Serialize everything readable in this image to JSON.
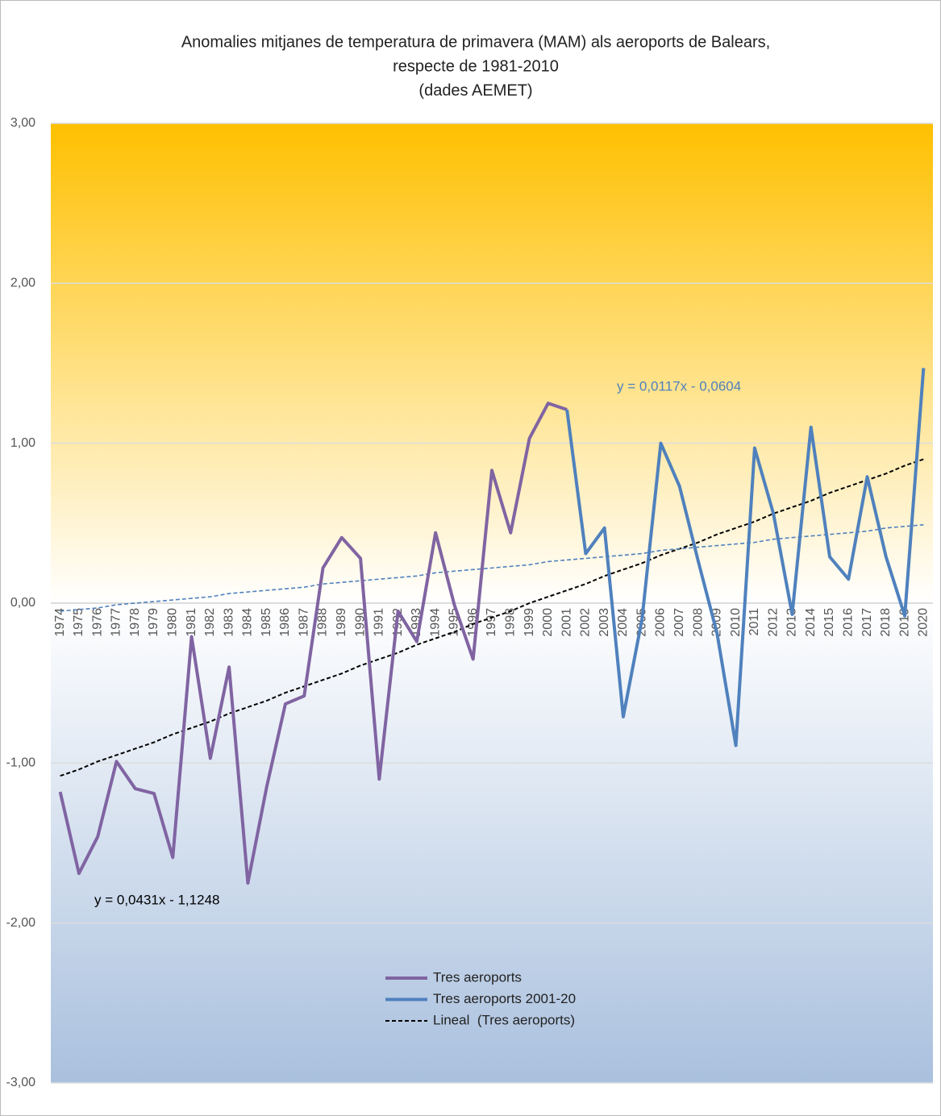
{
  "chart_data": {
    "type": "line",
    "title": [
      "Anomalies mitjanes de temperatura de primavera (MAM) als aeroports de Balears,",
      "respecte de 1981-2010",
      "(dades AEMET)"
    ],
    "categories": [
      "1974",
      "1975",
      "1976",
      "1977",
      "1978",
      "1979",
      "1980",
      "1981",
      "1982",
      "1983",
      "1984",
      "1985",
      "1986",
      "1987",
      "1988",
      "1989",
      "1990",
      "1991",
      "1992",
      "1993",
      "1994",
      "1995",
      "1996",
      "1997",
      "1998",
      "1999",
      "2000",
      "2001",
      "2002",
      "2003",
      "2004",
      "2005",
      "2006",
      "2007",
      "2008",
      "2009",
      "2010",
      "2011",
      "2012",
      "2013",
      "2014",
      "2015",
      "2016",
      "2017",
      "2018",
      "2019",
      "2020"
    ],
    "series": [
      {
        "name": "Tres aeroports",
        "color": "#8064a2",
        "values": [
          -1.18,
          -1.69,
          -1.46,
          -0.99,
          -1.16,
          -1.19,
          -1.59,
          -0.21,
          -0.97,
          -0.4,
          -1.75,
          -1.15,
          -0.63,
          -0.58,
          0.22,
          0.41,
          0.28,
          -1.1,
          -0.05,
          -0.24,
          0.44,
          -0.01,
          -0.35,
          0.83,
          0.44,
          1.03,
          1.25,
          1.21,
          null,
          null,
          null,
          null,
          null,
          null,
          null,
          null,
          null,
          null,
          null,
          null,
          null,
          null,
          null,
          null,
          null,
          null,
          null
        ]
      },
      {
        "name": "Tres aeroports 2001-20",
        "color": "#4f81bd",
        "values": [
          null,
          null,
          null,
          null,
          null,
          null,
          null,
          null,
          null,
          null,
          null,
          null,
          null,
          null,
          null,
          null,
          null,
          null,
          null,
          null,
          null,
          null,
          null,
          null,
          null,
          null,
          null,
          1.21,
          0.31,
          0.47,
          -0.71,
          -0.1,
          1.0,
          0.73,
          0.26,
          -0.19,
          -0.89,
          0.97,
          0.56,
          -0.07,
          1.1,
          0.29,
          0.15,
          0.79,
          0.29,
          -0.08,
          1.47
        ]
      },
      {
        "name": "Lineal  (Tres aeroports)",
        "color": "#000000",
        "dashed": true,
        "values": [
          -1.08,
          -1.04,
          -0.99,
          -0.95,
          -0.91,
          -0.87,
          -0.82,
          -0.78,
          -0.74,
          -0.69,
          -0.65,
          -0.61,
          -0.56,
          -0.52,
          -0.48,
          -0.44,
          -0.39,
          -0.35,
          -0.31,
          -0.26,
          -0.22,
          -0.18,
          -0.13,
          -0.09,
          -0.05,
          0,
          0.04,
          0.08,
          0.12,
          0.17,
          0.21,
          0.25,
          0.3,
          0.34,
          0.38,
          0.43,
          0.47,
          0.51,
          0.56,
          0.6,
          0.64,
          0.69,
          0.73,
          0.77,
          0.81,
          0.86,
          0.9
        ]
      },
      {
        "color": "#4f81bd",
        "dashed": true,
        "values": [
          -0.05,
          -0.04,
          -0.03,
          -0.01,
          0,
          0.01,
          0.02,
          0.03,
          0.04,
          0.06,
          0.07,
          0.08,
          0.09,
          0.1,
          0.12,
          0.13,
          0.14,
          0.15,
          0.16,
          0.17,
          0.19,
          0.2,
          0.21,
          0.22,
          0.23,
          0.24,
          0.26,
          0.27,
          0.28,
          0.29,
          0.3,
          0.31,
          0.33,
          0.34,
          0.35,
          0.36,
          0.37,
          0.38,
          0.4,
          0.41,
          0.42,
          0.43,
          0.44,
          0.45,
          0.47,
          0.48,
          0.49
        ]
      }
    ],
    "annotations": [
      "y = 0,0431x - 1,1248",
      "y = 0,0117x - 0,0604"
    ],
    "ylim": [
      -3,
      3
    ],
    "yticks": [
      {
        "value": -3,
        "label": "-3,00"
      },
      {
        "value": -2,
        "label": "-2,00"
      },
      {
        "value": -1,
        "label": "-1,00"
      },
      {
        "value": 0,
        "label": "0,00"
      },
      {
        "value": 1,
        "label": "1,00"
      },
      {
        "value": 2,
        "label": "2,00"
      },
      {
        "value": 3,
        "label": "3,00"
      }
    ],
    "grid": true,
    "legend": "bottom-center"
  }
}
